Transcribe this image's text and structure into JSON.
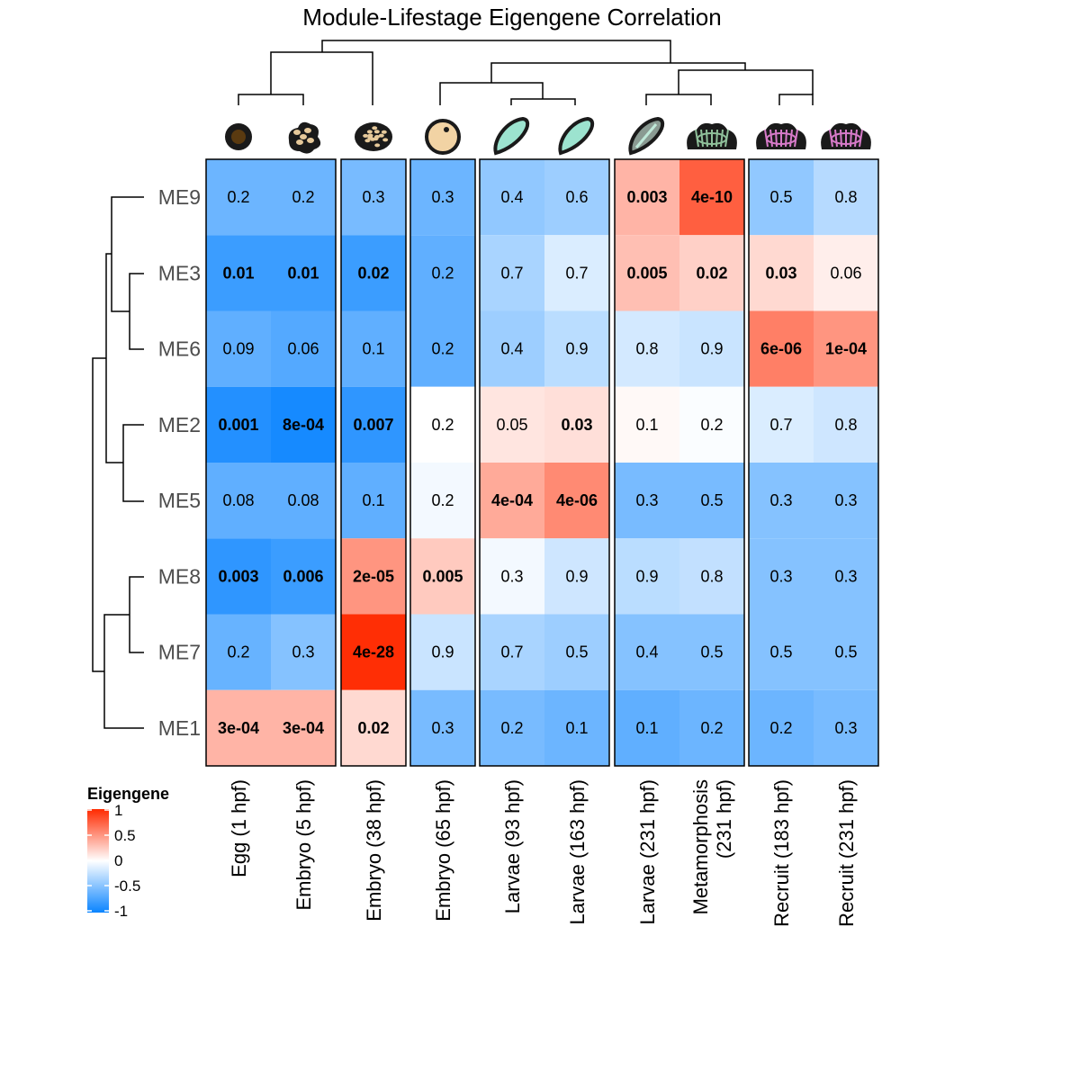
{
  "chart_data": {
    "type": "heatmap",
    "title": "Module-Lifestage Eigengene Correlation",
    "rows": [
      "ME9",
      "ME3",
      "ME6",
      "ME2",
      "ME5",
      "ME8",
      "ME7",
      "ME1"
    ],
    "columns": [
      {
        "label": "Egg (1 hpf)",
        "lines": [
          "Egg (1 hpf)"
        ]
      },
      {
        "label": "Embryo (5 hpf)",
        "lines": [
          "Embryo (5 hpf)"
        ]
      },
      {
        "label": "Embryo (38 hpf)",
        "lines": [
          "Embryo (38 hpf)"
        ]
      },
      {
        "label": "Embryo (65 hpf)",
        "lines": [
          "Embryo (65 hpf)"
        ]
      },
      {
        "label": "Larvae (93 hpf)",
        "lines": [
          "Larvae (93 hpf)"
        ]
      },
      {
        "label": "Larvae (163 hpf)",
        "lines": [
          "Larvae (163 hpf)"
        ]
      },
      {
        "label": "Larvae (231 hpf)",
        "lines": [
          "Larvae (231 hpf)"
        ]
      },
      {
        "label": "Metamorphosis (231 hpf)",
        "lines": [
          "Metamorphosis",
          "(231 hpf)"
        ]
      },
      {
        "label": "Recruit (183 hpf)",
        "lines": [
          "Recruit (183 hpf)"
        ]
      },
      {
        "label": "Recruit (231 hpf)",
        "lines": [
          "Recruit (231 hpf)"
        ]
      }
    ],
    "column_groups": [
      [
        0,
        1
      ],
      [
        2
      ],
      [
        3
      ],
      [
        4,
        5
      ],
      [
        6,
        7
      ],
      [
        8,
        9
      ]
    ],
    "correlation": [
      [
        -0.6,
        -0.6,
        -0.55,
        -0.6,
        -0.45,
        -0.4,
        0.35,
        0.75,
        -0.45,
        -0.3
      ],
      [
        -0.8,
        -0.8,
        -0.8,
        -0.65,
        -0.35,
        -0.15,
        0.3,
        0.22,
        0.18,
        0.08
      ],
      [
        -0.65,
        -0.7,
        -0.65,
        -0.65,
        -0.4,
        -0.28,
        -0.18,
        -0.22,
        0.6,
        0.5
      ],
      [
        -0.9,
        -0.95,
        -0.85,
        0.0,
        0.12,
        0.15,
        0.03,
        -0.02,
        -0.15,
        -0.2
      ],
      [
        -0.65,
        -0.65,
        -0.65,
        -0.05,
        0.4,
        0.55,
        -0.55,
        -0.55,
        -0.5,
        -0.5
      ],
      [
        -0.85,
        -0.8,
        0.5,
        0.25,
        -0.05,
        -0.2,
        -0.28,
        -0.25,
        -0.5,
        -0.5
      ],
      [
        -0.62,
        -0.5,
        0.98,
        -0.22,
        -0.35,
        -0.4,
        -0.5,
        -0.5,
        -0.5,
        -0.5
      ],
      [
        0.35,
        0.35,
        0.18,
        -0.55,
        -0.55,
        -0.6,
        -0.65,
        -0.6,
        -0.6,
        -0.55
      ]
    ],
    "pvalues": [
      [
        "0.2",
        "0.2",
        "0.3",
        "0.3",
        "0.4",
        "0.6",
        "0.003",
        "4e-10",
        "0.5",
        "0.8"
      ],
      [
        "0.01",
        "0.01",
        "0.02",
        "0.2",
        "0.7",
        "0.7",
        "0.005",
        "0.02",
        "0.03",
        "0.06"
      ],
      [
        "0.09",
        "0.06",
        "0.1",
        "0.2",
        "0.4",
        "0.9",
        "0.8",
        "0.9",
        "6e-06",
        "1e-04"
      ],
      [
        "0.001",
        "8e-04",
        "0.007",
        "0.2",
        "0.05",
        "0.03",
        "0.1",
        "0.2",
        "0.7",
        "0.8"
      ],
      [
        "0.08",
        "0.08",
        "0.1",
        "0.2",
        "4e-04",
        "4e-06",
        "0.3",
        "0.5",
        "0.3",
        "0.3"
      ],
      [
        "0.003",
        "0.006",
        "2e-05",
        "0.005",
        "0.3",
        "0.9",
        "0.9",
        "0.8",
        "0.3",
        "0.3"
      ],
      [
        "0.2",
        "0.3",
        "4e-28",
        "0.9",
        "0.7",
        "0.5",
        "0.4",
        "0.5",
        "0.5",
        "0.5"
      ],
      [
        "3e-04",
        "3e-04",
        "0.02",
        "0.3",
        "0.2",
        "0.1",
        "0.1",
        "0.2",
        "0.2",
        "0.3"
      ]
    ],
    "significance_threshold": 0.05,
    "color_scale": {
      "title": "Eigengene",
      "min": -1,
      "max": 1,
      "ticks": [
        "1",
        "0.5",
        "0",
        "-0.5",
        "-1"
      ],
      "low_color": "#0a84ff",
      "mid_color": "#ffffff",
      "high_color": "#ff2a00"
    },
    "stage_icons": [
      "egg-icon",
      "embryo-cleavage-icon",
      "embryo-morula-icon",
      "embryo-sphere-icon",
      "larva-icon",
      "larva-icon",
      "larva-striped-icon",
      "metamorphosis-polyp-icon",
      "recruit-polyp-icon",
      "recruit-polyp-icon"
    ],
    "row_dendrogram": true,
    "column_dendrogram": true
  }
}
